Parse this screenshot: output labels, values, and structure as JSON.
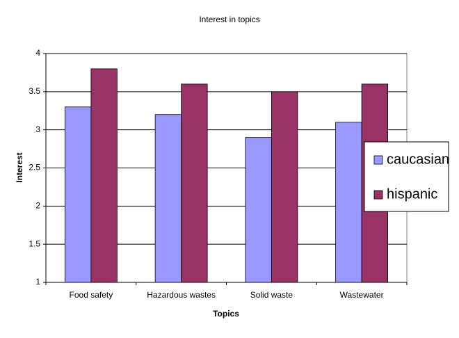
{
  "chart_data": {
    "type": "bar",
    "title": "Interest in topics",
    "x_label": "Topics",
    "y_label": "Interest",
    "categories": [
      "Food safety",
      "Hazardous wastes",
      "Solid waste",
      "Wastewater"
    ],
    "series": [
      {
        "name": "caucasian",
        "color": "#9999ff",
        "values": [
          3.3,
          3.2,
          2.9,
          3.1
        ]
      },
      {
        "name": "hispanic",
        "color": "#993366",
        "values": [
          3.8,
          3.6,
          3.5,
          3.6
        ]
      }
    ],
    "ylim": [
      1,
      4
    ],
    "yticks": [
      1,
      1.5,
      2,
      2.5,
      3,
      3.5,
      4
    ],
    "grid": true,
    "legend": "right"
  }
}
